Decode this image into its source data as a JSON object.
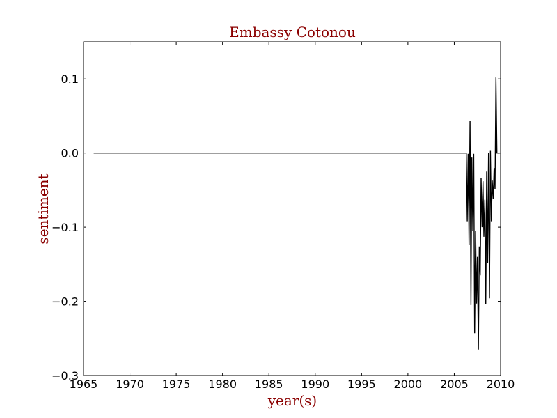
{
  "chart_data": {
    "type": "line",
    "title": "Embassy Cotonou",
    "xlabel": "year(s)",
    "ylabel": "sentiment",
    "xlim": [
      1965,
      2010
    ],
    "ylim": [
      -0.3,
      0.15
    ],
    "x_ticks": [
      1965,
      1970,
      1975,
      1980,
      1985,
      1990,
      1995,
      2000,
      2005,
      2010
    ],
    "y_ticks": [
      -0.3,
      -0.2,
      -0.1,
      0.0,
      0.1
    ],
    "x_tick_labels": [
      "1965",
      "1970",
      "1975",
      "1980",
      "1985",
      "1990",
      "1995",
      "2000",
      "2005",
      "2010"
    ],
    "y_tick_labels": [
      "−0.3",
      "−0.2",
      "−0.1",
      "0.0",
      "0.1"
    ],
    "grid": false,
    "colors": {
      "line": "#000000",
      "title": "#8b0000",
      "axis_label": "#8b0000"
    },
    "series": [
      {
        "x": [
          1966.1,
          2006.3,
          2006.4,
          2006.5,
          2006.6,
          2006.7,
          2006.8,
          2006.9,
          2007.0,
          2007.1,
          2007.2,
          2007.3,
          2007.4,
          2007.5,
          2007.6,
          2007.7,
          2007.8,
          2007.9,
          2008.0,
          2008.1,
          2008.2,
          2008.3,
          2008.4,
          2008.5,
          2008.6,
          2008.7,
          2008.8,
          2008.9,
          2009.0,
          2009.1,
          2009.2,
          2009.3,
          2009.4,
          2009.5,
          2009.6,
          2009.7,
          2009.8,
          2009.9
        ],
        "y": [
          0.0,
          0.0,
          -0.092,
          -0.001,
          -0.124,
          0.043,
          -0.205,
          -0.006,
          -0.105,
          -0.001,
          -0.243,
          -0.105,
          -0.203,
          -0.14,
          -0.265,
          -0.126,
          -0.165,
          -0.034,
          -0.1,
          -0.038,
          -0.113,
          -0.063,
          -0.204,
          -0.025,
          -0.148,
          0.0,
          -0.196,
          0.003,
          -0.092,
          -0.037,
          -0.062,
          -0.02,
          -0.049,
          0.102,
          0.0,
          0.0,
          0.0,
          0.0
        ]
      }
    ]
  }
}
